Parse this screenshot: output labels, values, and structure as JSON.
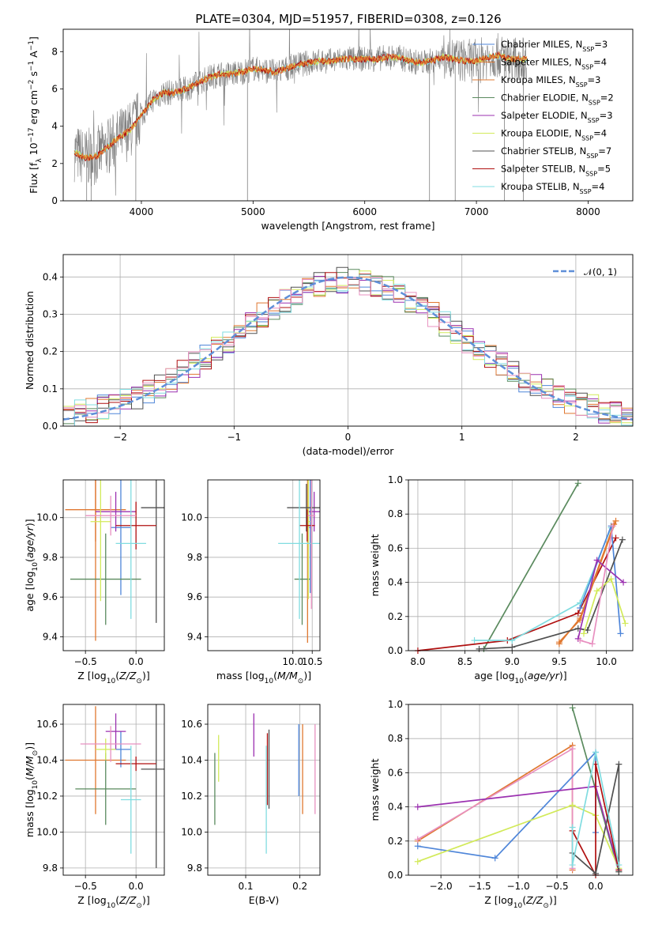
{
  "figure": {
    "title": "PLATE=0304, MJD=51957, FIBERID=0308, z=0.126"
  },
  "colors": {
    "chabrier_miles": "#4f86d9",
    "salpeter_miles": "#e07830",
    "kroupa_miles": "#e07830",
    "chabrier_elodie": "#5a8a5e",
    "salpeter_elodie": "#9b30b0",
    "kroupa_elodie": "#d2ea5a",
    "chabrier_stelib": "#505050",
    "salpeter_stelib": "#b01010",
    "kroupa_stelib": "#80dce0",
    "pink": "#e890c0",
    "gaussian": "#5f8fd8",
    "data": "#808080"
  },
  "chart_data": [
    {
      "id": "spectrum",
      "type": "line",
      "xlabel": "wavelength [Angstrom, rest frame]",
      "ylabel": "Flux [f_λ 10^-17 erg cm^-2 s^-1 A^-1]",
      "xlim": [
        3300,
        8400
      ],
      "ylim": [
        0,
        9.2
      ],
      "xticks": [
        "4000",
        "5000",
        "6000",
        "7000",
        "8000"
      ],
      "yticks": [
        "0",
        "2",
        "4",
        "6",
        "8"
      ],
      "legend_position": "top-right",
      "legend": [
        "Chabrier MILES, N_SSP=3",
        "Salpeter MILES, N_SSP=4",
        "Kroupa MILES, N_SSP=3",
        "Chabrier ELODIE, N_SSP=2",
        "Salpeter ELODIE, N_SSP=3",
        "Kroupa ELODIE, N_SSP=4",
        "Chabrier STELIB, N_SSP=7",
        "Salpeter STELIB, N_SSP=5",
        "Kroupa STELIB, N_SSP=4"
      ],
      "continuum": [
        [
          3400,
          2.6
        ],
        [
          3500,
          2.3
        ],
        [
          3600,
          2.4
        ],
        [
          3700,
          2.9
        ],
        [
          3800,
          3.4
        ],
        [
          3900,
          3.8
        ],
        [
          4000,
          4.6
        ],
        [
          4100,
          5.4
        ],
        [
          4200,
          5.8
        ],
        [
          4300,
          5.8
        ],
        [
          4400,
          6.0
        ],
        [
          4500,
          6.3
        ],
        [
          4600,
          6.6
        ],
        [
          4700,
          6.8
        ],
        [
          4800,
          6.8
        ],
        [
          4900,
          6.9
        ],
        [
          5000,
          7.1
        ],
        [
          5100,
          7.0
        ],
        [
          5200,
          6.9
        ],
        [
          5300,
          7.1
        ],
        [
          5400,
          7.3
        ],
        [
          5500,
          7.4
        ],
        [
          5600,
          7.5
        ],
        [
          5700,
          7.5
        ],
        [
          5800,
          7.6
        ],
        [
          5900,
          7.6
        ],
        [
          6000,
          7.6
        ],
        [
          6100,
          7.6
        ],
        [
          6200,
          7.7
        ],
        [
          6300,
          7.7
        ],
        [
          6400,
          7.5
        ],
        [
          6500,
          7.4
        ],
        [
          6600,
          7.5
        ],
        [
          6700,
          7.7
        ],
        [
          6800,
          7.6
        ],
        [
          6900,
          7.5
        ],
        [
          7000,
          7.5
        ],
        [
          7100,
          7.7
        ],
        [
          7200,
          7.8
        ],
        [
          7300,
          7.6
        ],
        [
          7400,
          7.6
        ]
      ]
    },
    {
      "id": "residuals",
      "type": "bar",
      "xlabel": "(data-model)/error",
      "ylabel": "Normed distribution",
      "xlim": [
        -2.5,
        2.5
      ],
      "ylim": [
        0,
        0.46
      ],
      "xticks": [
        "−2",
        "−1",
        "0",
        "1",
        "2"
      ],
      "yticks": [
        "0.0",
        "0.1",
        "0.2",
        "0.3",
        "0.4"
      ],
      "legend_position": "top-right",
      "gaussian_label": "𝒩(0, 1)"
    },
    {
      "id": "age_vs_Z",
      "type": "scatter",
      "xlabel": "Z [log10(Z/Z⊙)]",
      "ylabel": "age  [log10(age/yr)]",
      "xlim": [
        -0.72,
        0.28
      ],
      "ylim": [
        9.33,
        10.19
      ],
      "xticks": [
        "−0.5",
        "0.0"
      ],
      "yticks": [
        "9.4",
        "9.6",
        "9.8",
        "10.0"
      ],
      "points": [
        {
          "x": -0.4,
          "y": 10.04,
          "xerr": 0.3,
          "yerr": 0.16,
          "c": "salpeter_miles"
        },
        {
          "x": -0.4,
          "y": 10.04,
          "xerr": 0.05,
          "yerr": 0.66,
          "c": "kroupa_miles"
        },
        {
          "x": -0.15,
          "y": 9.95,
          "xerr": 0.1,
          "yerr": 0.34,
          "c": "chabrier_miles"
        },
        {
          "x": -0.3,
          "y": 9.69,
          "xerr": 0.35,
          "yerr": 0.23,
          "c": "chabrier_elodie"
        },
        {
          "x": -0.2,
          "y": 10.03,
          "xerr": 0.2,
          "yerr": 0.1,
          "c": "salpeter_elodie"
        },
        {
          "x": -0.35,
          "y": 9.98,
          "xerr": 0.1,
          "yerr": 0.4,
          "c": "kroupa_elodie"
        },
        {
          "x": 0.2,
          "y": 10.05,
          "xerr": 0.15,
          "yerr": 0.58,
          "c": "chabrier_stelib"
        },
        {
          "x": 0.0,
          "y": 9.96,
          "xerr": 0.2,
          "yerr": 0.12,
          "c": "salpeter_stelib"
        },
        {
          "x": -0.05,
          "y": 9.87,
          "xerr": 0.15,
          "yerr": 0.38,
          "c": "kroupa_stelib"
        },
        {
          "x": -0.25,
          "y": 10.01,
          "xerr": 0.25,
          "yerr": 0.1,
          "c": "pink"
        }
      ]
    },
    {
      "id": "age_vs_mass",
      "type": "scatter",
      "xlabel": "mass [log10(M/M⊙)]",
      "ylabel": "",
      "xlim": [
        7.8,
        10.7
      ],
      "ylim": [
        9.33,
        10.19
      ],
      "xticks": [
        "10.0",
        "10.5"
      ],
      "yticks": [
        "9.4",
        "9.6",
        "9.8",
        "10.0"
      ],
      "points": [
        {
          "x": 10.45,
          "y": 9.95,
          "xerr": 0.03,
          "yerr": 0.33,
          "c": "chabrier_miles"
        },
        {
          "x": 10.38,
          "y": 10.04,
          "xerr": 0.03,
          "yerr": 0.67,
          "c": "kroupa_miles"
        },
        {
          "x": 10.24,
          "y": 9.69,
          "xerr": 0.2,
          "yerr": 0.23,
          "c": "chabrier_elodie"
        },
        {
          "x": 10.55,
          "y": 10.03,
          "xerr": 0.15,
          "yerr": 0.1,
          "c": "salpeter_elodie"
        },
        {
          "x": 10.4,
          "y": 9.98,
          "xerr": 0.05,
          "yerr": 0.39,
          "c": "kroupa_elodie"
        },
        {
          "x": 10.35,
          "y": 10.05,
          "xerr": 0.5,
          "yerr": 0.12,
          "c": "chabrier_stelib"
        },
        {
          "x": 10.37,
          "y": 9.96,
          "xerr": 0.2,
          "yerr": 0.08,
          "c": "salpeter_stelib"
        },
        {
          "x": 10.17,
          "y": 9.87,
          "xerr": 0.55,
          "yerr": 0.38,
          "c": "kroupa_stelib"
        },
        {
          "x": 10.48,
          "y": 10.01,
          "xerr": 0.1,
          "yerr": 0.47,
          "c": "pink"
        }
      ]
    },
    {
      "id": "weight_vs_age",
      "type": "line",
      "xlabel": "age  [log10(age/yr)]",
      "ylabel": "mass weight",
      "xlim": [
        7.9,
        10.28
      ],
      "ylim": [
        0,
        1.0
      ],
      "xticks": [
        "8.0",
        "8.5",
        "9.0",
        "9.5",
        "10.0"
      ],
      "yticks": [
        "0.0",
        "0.2",
        "0.4",
        "0.6",
        "0.8",
        "1.0"
      ],
      "series": [
        {
          "c": "chabrier_elodie",
          "pts": [
            [
              8.7,
              0.01
            ],
            [
              9.7,
              0.98
            ]
          ]
        },
        {
          "c": "salpeter_stelib",
          "pts": [
            [
              8.0,
              0.0
            ],
            [
              8.95,
              0.06
            ],
            [
              9.7,
              0.22
            ],
            [
              10.1,
              0.66
            ]
          ]
        },
        {
          "c": "kroupa_stelib",
          "pts": [
            [
              8.6,
              0.06
            ],
            [
              9.0,
              0.06
            ],
            [
              9.72,
              0.28
            ],
            [
              10.05,
              0.72
            ]
          ]
        },
        {
          "c": "chabrier_miles",
          "pts": [
            [
              9.72,
              0.25
            ],
            [
              10.05,
              0.73
            ],
            [
              10.15,
              0.1
            ]
          ]
        },
        {
          "c": "salpeter_miles",
          "pts": [
            [
              9.5,
              0.05
            ],
            [
              9.72,
              0.18
            ],
            [
              10.1,
              0.76
            ]
          ]
        },
        {
          "c": "kroupa_miles",
          "pts": [
            [
              9.5,
              0.04
            ],
            [
              9.72,
              0.19
            ],
            [
              10.08,
              0.74
            ]
          ]
        },
        {
          "c": "chabrier_stelib",
          "pts": [
            [
              8.65,
              0.01
            ],
            [
              9.0,
              0.02
            ],
            [
              9.7,
              0.13
            ],
            [
              9.8,
              0.12
            ],
            [
              10.17,
              0.65
            ]
          ]
        },
        {
          "c": "salpeter_elodie",
          "pts": [
            [
              9.7,
              0.07
            ],
            [
              9.9,
              0.53
            ],
            [
              10.18,
              0.4
            ]
          ]
        },
        {
          "c": "kroupa_elodie",
          "pts": [
            [
              9.76,
              0.1
            ],
            [
              9.9,
              0.35
            ],
            [
              10.05,
              0.42
            ],
            [
              10.2,
              0.16
            ]
          ]
        },
        {
          "c": "pink",
          "pts": [
            [
              9.72,
              0.06
            ],
            [
              9.85,
              0.04
            ],
            [
              10.07,
              0.73
            ]
          ]
        }
      ]
    },
    {
      "id": "mass_vs_Z",
      "type": "scatter",
      "xlabel": "Z [log10(Z/Z⊙)]",
      "ylabel": "mass [log10(M/M⊙)]",
      "xlim": [
        -0.72,
        0.28
      ],
      "ylim": [
        9.76,
        10.71
      ],
      "xticks": [
        "−0.5",
        "0.0"
      ],
      "yticks": [
        "9.8",
        "10.0",
        "10.2",
        "10.4",
        "10.6"
      ],
      "points": [
        {
          "x": -0.4,
          "y": 10.4,
          "xerr": 0.3,
          "yerr": 0.3,
          "c": "salpeter_miles"
        },
        {
          "x": -0.15,
          "y": 10.46,
          "xerr": 0.1,
          "yerr": 0.1,
          "c": "chabrier_miles"
        },
        {
          "x": -0.3,
          "y": 10.24,
          "xerr": 0.3,
          "yerr": 0.2,
          "c": "chabrier_elodie"
        },
        {
          "x": -0.2,
          "y": 10.56,
          "xerr": 0.1,
          "yerr": 0.1,
          "c": "salpeter_elodie"
        },
        {
          "x": -0.3,
          "y": 10.46,
          "xerr": 0.1,
          "yerr": 0.06,
          "c": "kroupa_elodie"
        },
        {
          "x": 0.2,
          "y": 10.35,
          "xerr": 0.15,
          "yerr": 0.55,
          "c": "chabrier_stelib"
        },
        {
          "x": 0.0,
          "y": 10.38,
          "xerr": 0.2,
          "yerr": 0.04,
          "c": "salpeter_stelib"
        },
        {
          "x": -0.05,
          "y": 10.18,
          "xerr": 0.1,
          "yerr": 0.3,
          "c": "kroupa_stelib"
        },
        {
          "x": -0.25,
          "y": 10.49,
          "xerr": 0.3,
          "yerr": 0.1,
          "c": "pink"
        }
      ]
    },
    {
      "id": "mass_vs_ebv",
      "type": "scatter",
      "xlabel": "E(B-V)",
      "ylabel": "",
      "xlim": [
        0.03,
        0.237
      ],
      "ylim": [
        9.76,
        10.71
      ],
      "xticks": [
        "0.1",
        "0.2"
      ],
      "yticks": [
        "9.8",
        "10.0",
        "10.2",
        "10.4",
        "10.6"
      ],
      "points": [
        {
          "x": 0.043,
          "y": 10.24,
          "yerr": 0.2,
          "c": "chabrier_elodie"
        },
        {
          "x": 0.05,
          "y": 10.41,
          "yerr": 0.13,
          "c": "kroupa_elodie"
        },
        {
          "x": 0.115,
          "y": 10.54,
          "yerr": 0.12,
          "c": "salpeter_elodie"
        },
        {
          "x": 0.14,
          "y": 10.35,
          "yerr": 0.2,
          "c": "salpeter_stelib"
        },
        {
          "x": 0.143,
          "y": 10.35,
          "yerr": 0.22,
          "c": "chabrier_stelib"
        },
        {
          "x": 0.138,
          "y": 10.18,
          "yerr": 0.3,
          "c": "kroupa_stelib"
        },
        {
          "x": 0.198,
          "y": 10.4,
          "yerr": 0.2,
          "c": "chabrier_miles"
        },
        {
          "x": 0.205,
          "y": 10.35,
          "yerr": 0.25,
          "c": "salpeter_miles"
        },
        {
          "x": 0.228,
          "y": 10.35,
          "yerr": 0.25,
          "c": "pink"
        }
      ]
    },
    {
      "id": "weight_vs_Z",
      "type": "line",
      "xlabel": "Z [log10(Z/Z⊙)]",
      "ylabel": "mass weight",
      "xlim": [
        -2.42,
        0.48
      ],
      "ylim": [
        0,
        1.0
      ],
      "xticks": [
        "−2.0",
        "−1.5",
        "−1.0",
        "−0.5",
        "0.0"
      ],
      "yticks": [
        "0.0",
        "0.2",
        "0.4",
        "0.6",
        "0.8",
        "1.0"
      ],
      "series": [
        {
          "c": "chabrier_elodie",
          "pts": [
            [
              -0.3,
              0.98
            ],
            [
              0.3,
              0.02
            ]
          ]
        },
        {
          "c": "salpeter_miles",
          "pts": [
            [
              -2.3,
              0.2
            ],
            [
              -0.3,
              0.76
            ],
            [
              -0.3,
              0.03
            ]
          ]
        },
        {
          "c": "pink",
          "pts": [
            [
              -2.3,
              0.21
            ],
            [
              -0.3,
              0.74
            ],
            [
              -0.3,
              0.04
            ]
          ]
        },
        {
          "c": "chabrier_miles",
          "pts": [
            [
              -2.3,
              0.17
            ],
            [
              -1.3,
              0.1
            ],
            [
              0.0,
              0.72
            ],
            [
              0.0,
              0.25
            ]
          ]
        },
        {
          "c": "kroupa_elodie",
          "pts": [
            [
              -2.3,
              0.08
            ],
            [
              -0.3,
              0.41
            ],
            [
              0.0,
              0.35
            ],
            [
              0.3,
              0.04
            ]
          ]
        },
        {
          "c": "salpeter_elodie",
          "pts": [
            [
              -2.3,
              0.4
            ],
            [
              0.0,
              0.52
            ],
            [
              0.3,
              0.03
            ]
          ]
        },
        {
          "c": "salpeter_stelib",
          "pts": [
            [
              -0.3,
              0.26
            ],
            [
              0.0,
              0.0
            ],
            [
              0.0,
              0.65
            ],
            [
              0.3,
              0.03
            ]
          ]
        },
        {
          "c": "chabrier_stelib",
          "pts": [
            [
              -0.3,
              0.13
            ],
            [
              0.0,
              0.01
            ],
            [
              0.3,
              0.65
            ],
            [
              0.3,
              0.02
            ]
          ]
        },
        {
          "c": "kroupa_stelib",
          "pts": [
            [
              -0.3,
              0.28
            ],
            [
              -0.3,
              0.06
            ],
            [
              0.0,
              0.72
            ],
            [
              0.3,
              0.06
            ]
          ]
        }
      ]
    }
  ]
}
